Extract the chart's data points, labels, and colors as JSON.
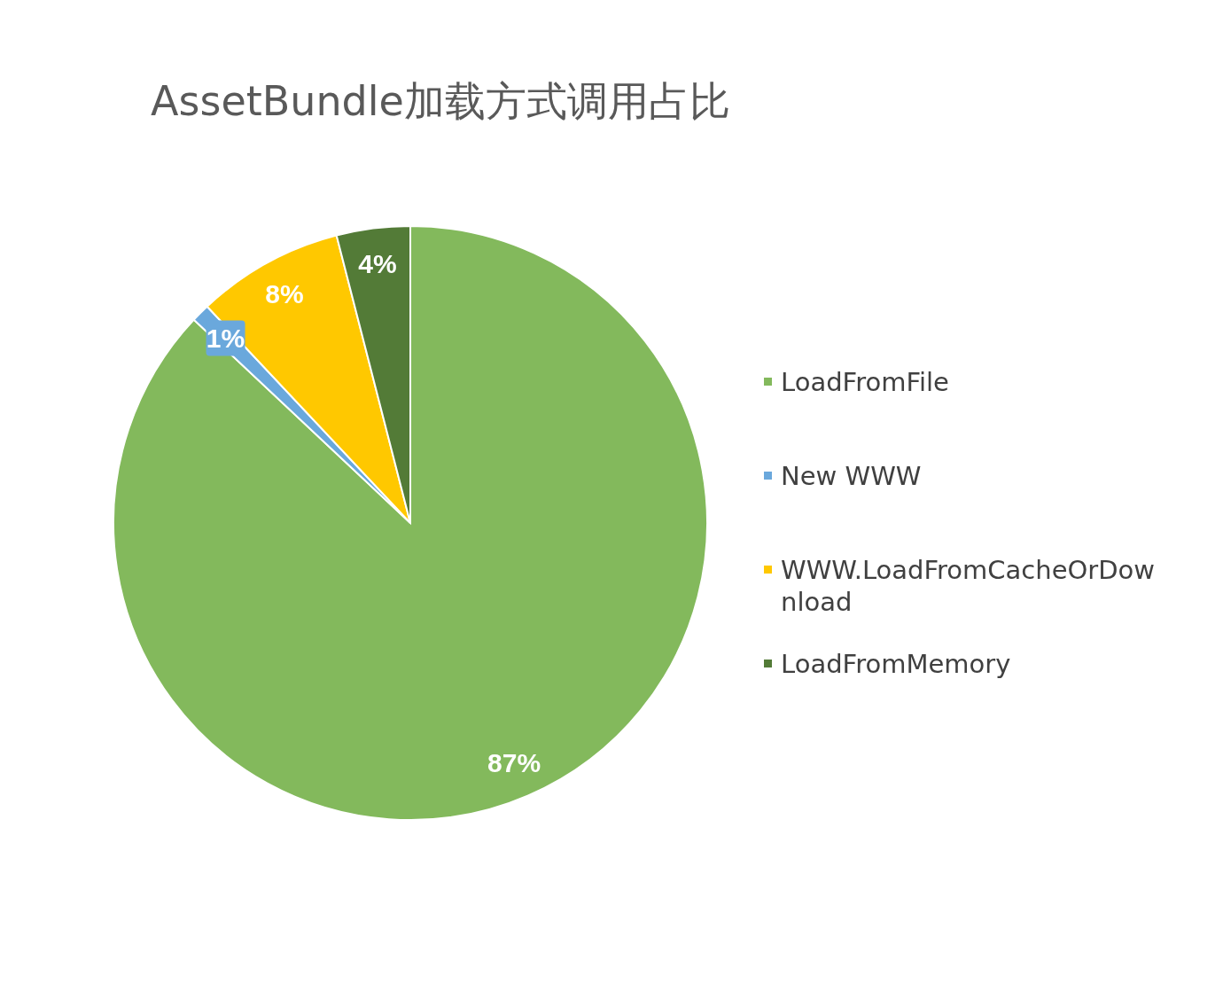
{
  "chart_data": {
    "type": "pie",
    "title": "AssetBundle加载方式调用占比",
    "categories": [
      "LoadFromFile",
      "New WWW",
      "WWW.LoadFromCacheOrDownload",
      "LoadFromMemory"
    ],
    "values": [
      87,
      1,
      8,
      4
    ],
    "colors": [
      "#83b95c",
      "#6aa8dc",
      "#ffc800",
      "#537b37"
    ],
    "value_labels": [
      "87%",
      "1%",
      "8%",
      "4%"
    ],
    "legend": "right"
  }
}
